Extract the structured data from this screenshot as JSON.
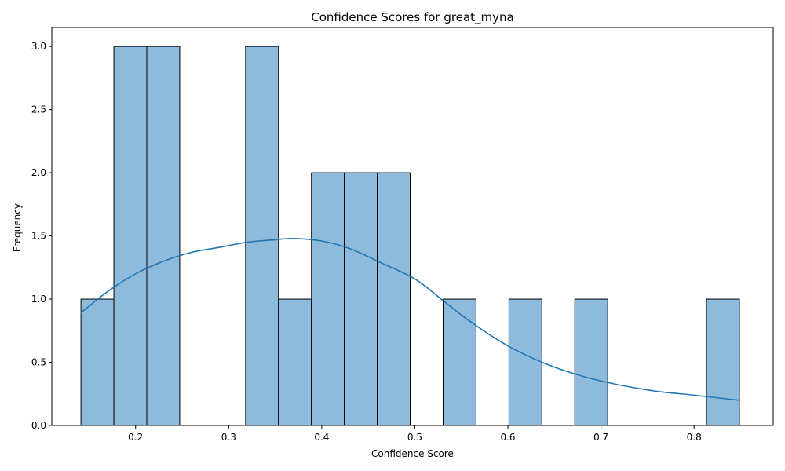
{
  "chart_data": {
    "type": "bar",
    "title": "Confidence Scores for great_myna",
    "xlabel": "Confidence Score",
    "ylabel": "Frequency",
    "xlim": [
      0.11,
      0.885
    ],
    "ylim": [
      0.0,
      3.15
    ],
    "xticks": [
      0.2,
      0.3,
      0.4,
      0.5,
      0.6,
      0.7,
      0.8
    ],
    "xtick_labels": [
      "0.2",
      "0.3",
      "0.4",
      "0.5",
      "0.6",
      "0.7",
      "0.8"
    ],
    "yticks": [
      0.0,
      0.5,
      1.0,
      1.5,
      2.0,
      2.5,
      3.0
    ],
    "ytick_labels": [
      "0.0",
      "0.5",
      "1.0",
      "1.5",
      "2.0",
      "2.5",
      "3.0"
    ],
    "bin_start": 0.1413,
    "bin_width": 0.03537,
    "counts": [
      1,
      3,
      3,
      0,
      0,
      3,
      1,
      2,
      2,
      2,
      0,
      1,
      0,
      1,
      0,
      1,
      0,
      0,
      0,
      1
    ],
    "kde": {
      "x": [
        0.141,
        0.17,
        0.2,
        0.23,
        0.26,
        0.29,
        0.32,
        0.35,
        0.37,
        0.4,
        0.43,
        0.46,
        0.5,
        0.53,
        0.56,
        0.6,
        0.64,
        0.68,
        0.72,
        0.76,
        0.8,
        0.848
      ],
      "y": [
        0.89,
        1.06,
        1.2,
        1.3,
        1.37,
        1.41,
        1.45,
        1.47,
        1.48,
        1.46,
        1.4,
        1.3,
        1.16,
        0.99,
        0.82,
        0.63,
        0.49,
        0.39,
        0.32,
        0.27,
        0.24,
        0.2
      ]
    },
    "colors": {
      "bar_fill": "#8ebbdc",
      "bar_edge": "#000000",
      "kde_line": "#1f77b4"
    }
  }
}
